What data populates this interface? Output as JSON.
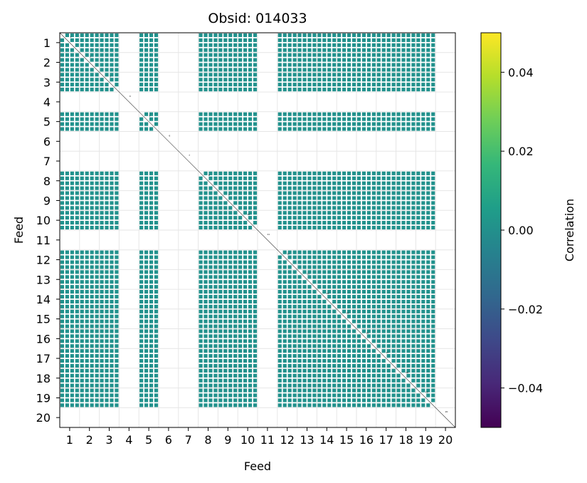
{
  "chart_data": {
    "type": "heatmap",
    "title": "Obsid: 014033",
    "xlabel": "Feed",
    "ylabel": "Feed",
    "feeds": [
      1,
      2,
      3,
      4,
      5,
      6,
      7,
      8,
      9,
      10,
      11,
      12,
      13,
      14,
      15,
      16,
      17,
      18,
      19,
      20
    ],
    "tick_labels": [
      "1",
      "2",
      "3",
      "4",
      "5",
      "6",
      "7",
      "8",
      "9",
      "10",
      "11",
      "12",
      "13",
      "14",
      "15",
      "16",
      "17",
      "18",
      "19",
      "20"
    ],
    "active_feeds": [
      1,
      2,
      3,
      5,
      8,
      9,
      10,
      12,
      13,
      14,
      15,
      16,
      17,
      18,
      19
    ],
    "inactive_feeds": [
      4,
      6,
      7,
      11,
      20
    ],
    "block_value": 0.0,
    "sub_blocks_per_feed": 4,
    "grid": true,
    "colorbar": {
      "label": "Correlation",
      "vmin": -0.05,
      "vmax": 0.05,
      "ticks": [
        0.04,
        0.02,
        0.0,
        -0.02,
        -0.04
      ],
      "tick_labels": [
        "0.04",
        "0.02",
        "0.00",
        "−0.02",
        "−0.04"
      ],
      "colormap": "viridis",
      "colors": [
        "#440154",
        "#482878",
        "#3e4989",
        "#31688e",
        "#26828e",
        "#1f9e89",
        "#35b779",
        "#6ece58",
        "#b5de2b",
        "#fde725"
      ]
    },
    "mid_color": "#21918c"
  }
}
